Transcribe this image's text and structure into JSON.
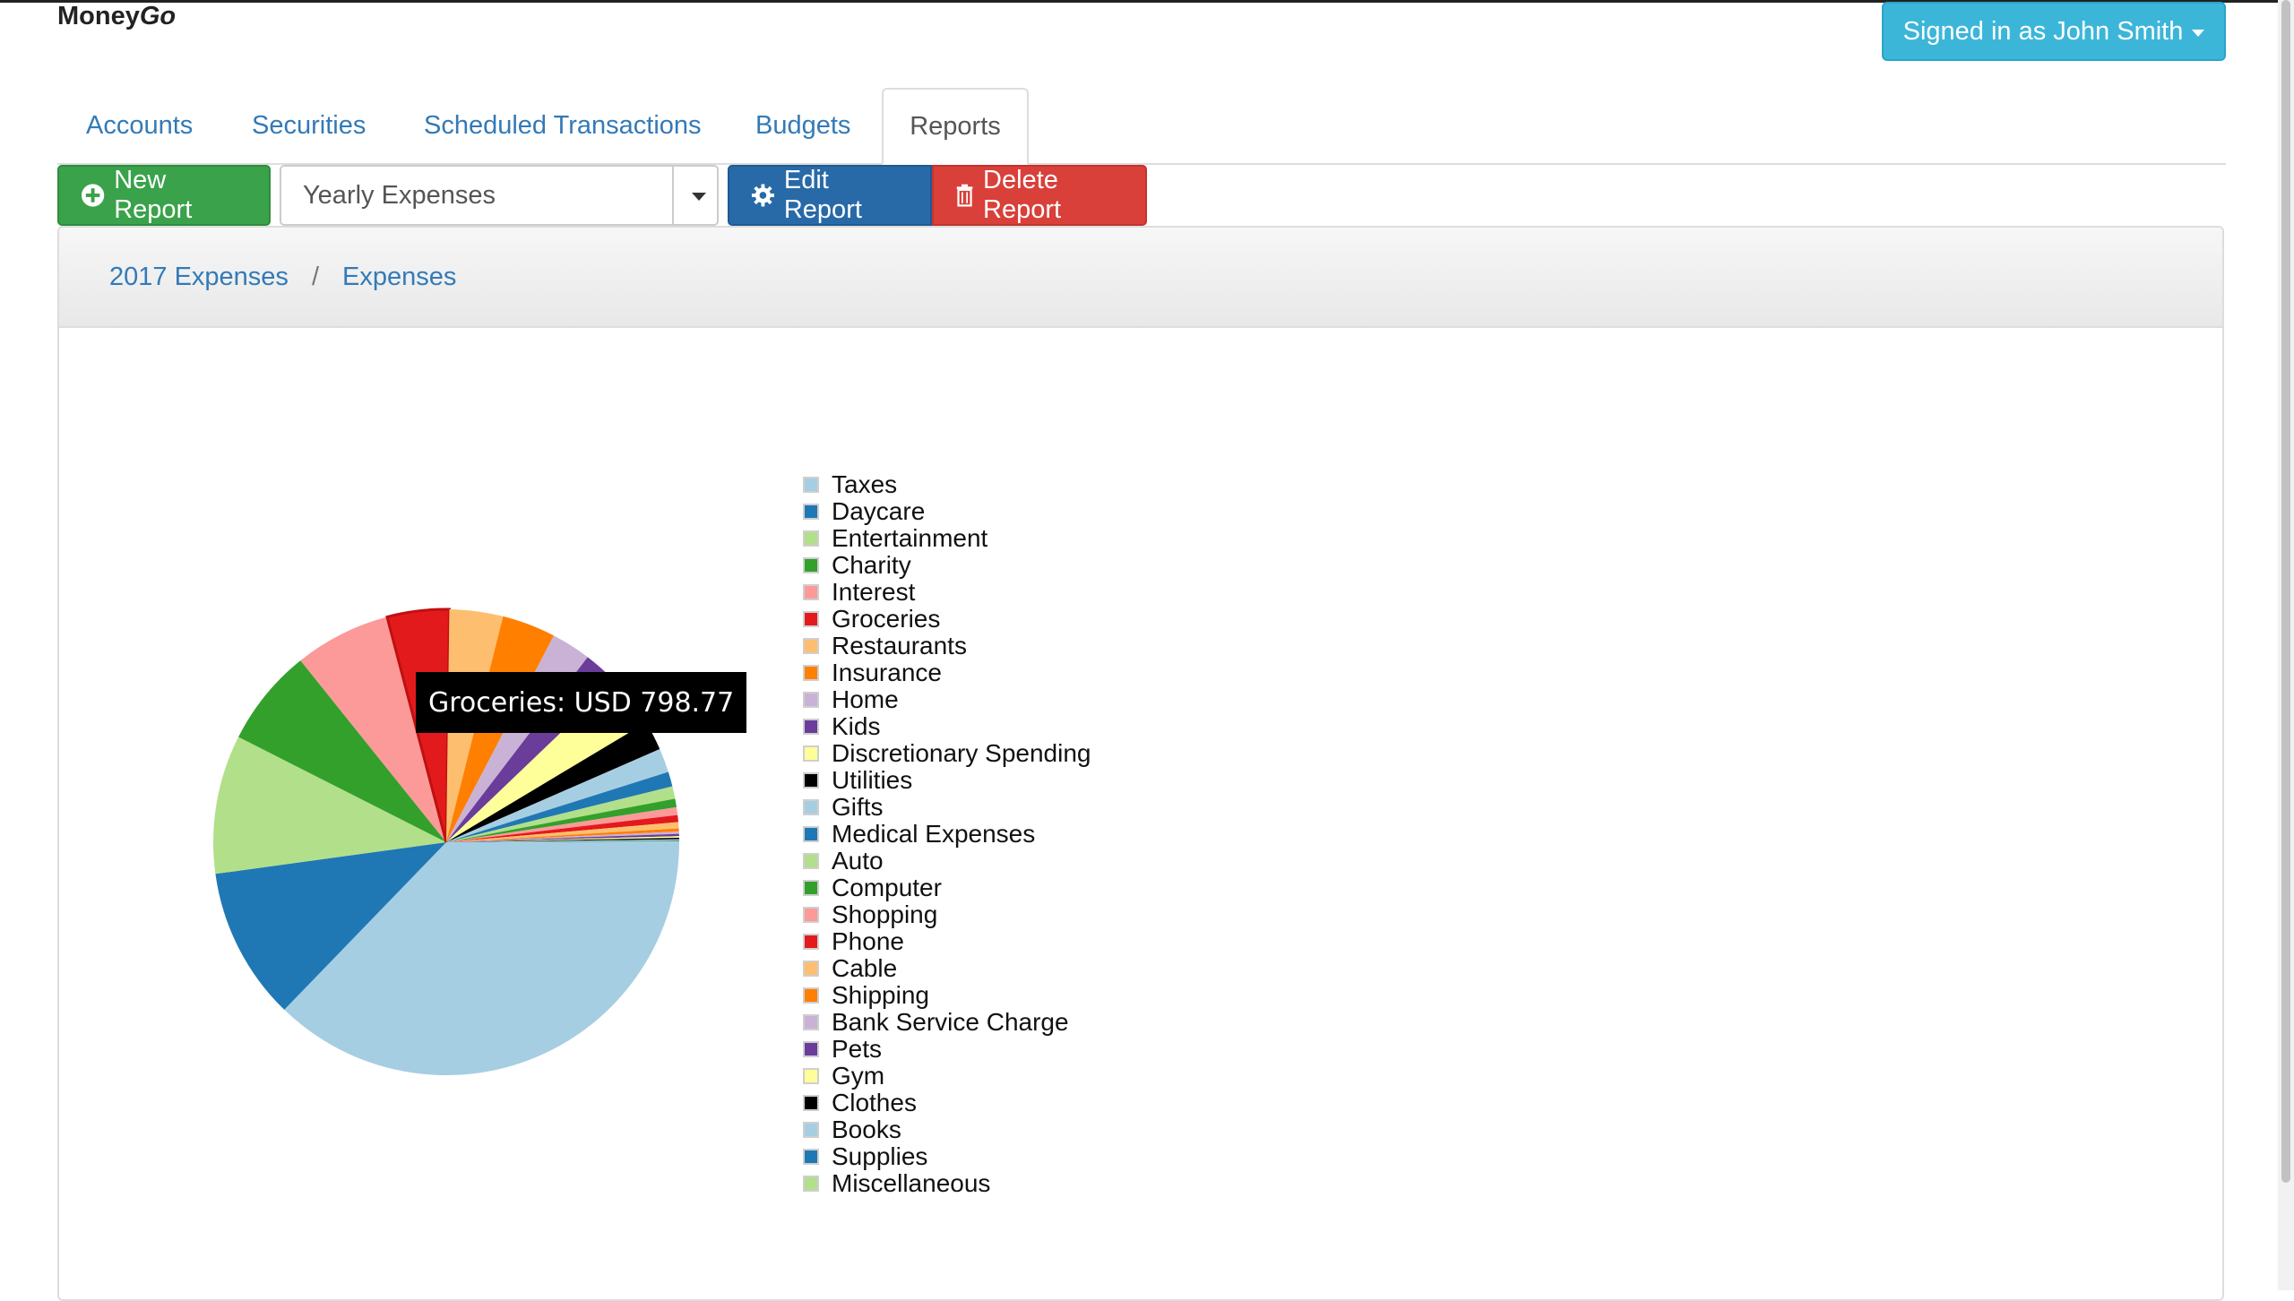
{
  "app": {
    "brand_primary": "Money",
    "brand_secondary": "Go"
  },
  "user": {
    "signed_in_label": "Signed in as John Smith"
  },
  "tabs": [
    {
      "label": "Accounts",
      "active": false
    },
    {
      "label": "Securities",
      "active": false
    },
    {
      "label": "Scheduled Transactions",
      "active": false
    },
    {
      "label": "Budgets",
      "active": false
    },
    {
      "label": "Reports",
      "active": true
    }
  ],
  "toolbar": {
    "new_report_label": "New Report",
    "selected_report": "Yearly Expenses",
    "edit_report_label": "Edit Report",
    "delete_report_label": "Delete Report"
  },
  "breadcrumb": [
    "2017 Expenses",
    "Expenses"
  ],
  "tooltip": {
    "text": "Groceries: USD 798.77"
  },
  "chart_data": {
    "type": "pie",
    "categories": [
      "Taxes",
      "Daycare",
      "Entertainment",
      "Charity",
      "Interest",
      "Groceries",
      "Restaurants",
      "Insurance",
      "Home",
      "Kids",
      "Discretionary Spending",
      "Utilities",
      "Gifts",
      "Medical Expenses",
      "Auto",
      "Computer",
      "Shopping",
      "Phone",
      "Cable",
      "Shipping",
      "Bank Service Charge",
      "Pets",
      "Gym",
      "Clothes",
      "Books",
      "Supplies",
      "Miscellaneous"
    ],
    "values": [
      6920,
      1970,
      1790,
      1260,
      1240,
      798.77,
      690,
      690,
      510,
      460,
      660,
      380,
      310,
      190,
      160,
      110,
      100,
      90,
      80,
      40,
      30,
      30,
      20,
      20,
      15,
      12,
      10
    ],
    "colors": [
      "#a6cee3",
      "#1f78b4",
      "#b2df8a",
      "#33a02c",
      "#fb9a99",
      "#e31a1c",
      "#fdbf6f",
      "#ff7f00",
      "#cab2d6",
      "#6a3d9a",
      "#ffff99",
      "#000000",
      "#a6cee3",
      "#1f78b4",
      "#b2df8a",
      "#33a02c",
      "#fb9a99",
      "#e31a1c",
      "#fdbf6f",
      "#ff7f00",
      "#cab2d6",
      "#6a3d9a",
      "#ffff99",
      "#000000",
      "#a6cee3",
      "#1f78b4",
      "#b2df8a"
    ],
    "highlighted": "Groceries",
    "legend": "right"
  }
}
